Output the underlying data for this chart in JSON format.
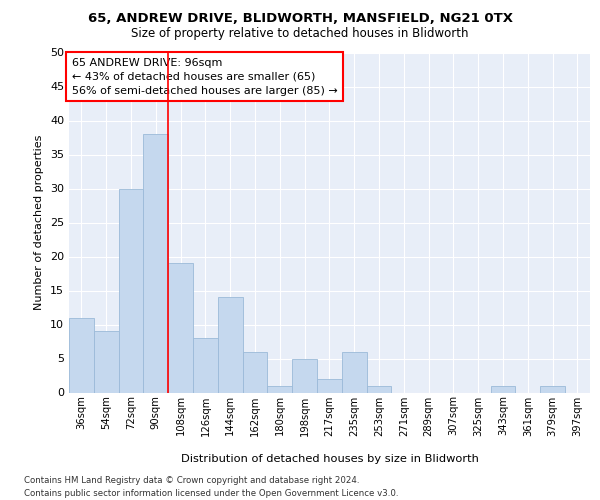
{
  "title_line1": "65, ANDREW DRIVE, BLIDWORTH, MANSFIELD, NG21 0TX",
  "title_line2": "Size of property relative to detached houses in Blidworth",
  "xlabel": "Distribution of detached houses by size in Blidworth",
  "ylabel": "Number of detached properties",
  "categories": [
    "36sqm",
    "54sqm",
    "72sqm",
    "90sqm",
    "108sqm",
    "126sqm",
    "144sqm",
    "162sqm",
    "180sqm",
    "198sqm",
    "217sqm",
    "235sqm",
    "253sqm",
    "271sqm",
    "289sqm",
    "307sqm",
    "325sqm",
    "343sqm",
    "361sqm",
    "379sqm",
    "397sqm"
  ],
  "values": [
    11,
    9,
    30,
    38,
    19,
    8,
    14,
    6,
    1,
    5,
    2,
    6,
    1,
    0,
    0,
    0,
    0,
    1,
    0,
    1,
    0
  ],
  "bar_color": "#c5d8ee",
  "bar_edge_color": "#9bbad8",
  "red_line_index": 3,
  "annotation_title": "65 ANDREW DRIVE: 96sqm",
  "annotation_line2": "← 43% of detached houses are smaller (65)",
  "annotation_line3": "56% of semi-detached houses are larger (85) →",
  "ylim": [
    0,
    50
  ],
  "yticks": [
    0,
    5,
    10,
    15,
    20,
    25,
    30,
    35,
    40,
    45,
    50
  ],
  "plot_background": "#e8eef8",
  "footer_line1": "Contains HM Land Registry data © Crown copyright and database right 2024.",
  "footer_line2": "Contains public sector information licensed under the Open Government Licence v3.0."
}
